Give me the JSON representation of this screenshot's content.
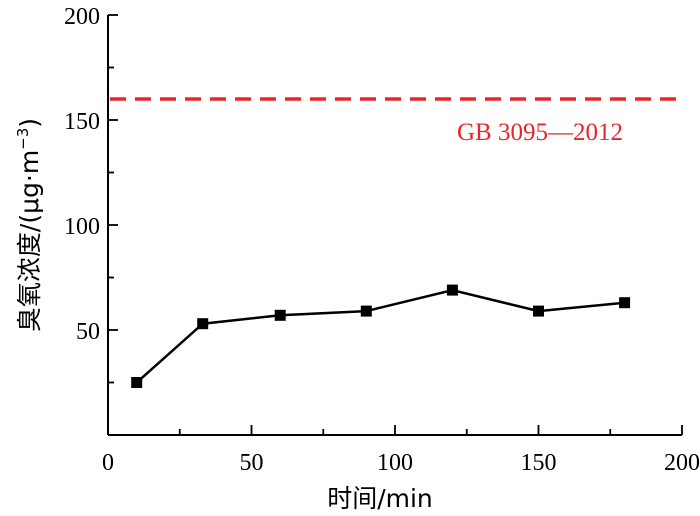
{
  "chart_data": {
    "type": "line",
    "xlabel": "时间/min",
    "ylabel_main": "臭氧浓度/(μg·m",
    "ylabel_sup": "−3",
    "ylabel_close": ")",
    "xlim": [
      0,
      200
    ],
    "ylim": [
      0,
      200
    ],
    "x_ticks": [
      "0",
      "50",
      "100",
      "150",
      "200"
    ],
    "y_ticks": [
      "50",
      "100",
      "150",
      "200"
    ],
    "x_tick_values": [
      0,
      50,
      100,
      150,
      200
    ],
    "y_tick_values": [
      50,
      100,
      150,
      200
    ],
    "series": [
      {
        "x": [
          10,
          33,
          60,
          90,
          120,
          150,
          180
        ],
        "values": [
          25,
          53,
          57,
          59,
          69,
          59,
          63
        ]
      }
    ],
    "reference_line": {
      "value": 160,
      "label": "GB 3095—2012",
      "color": "#e8262a"
    },
    "line_color": "#000000",
    "grid": false
  }
}
